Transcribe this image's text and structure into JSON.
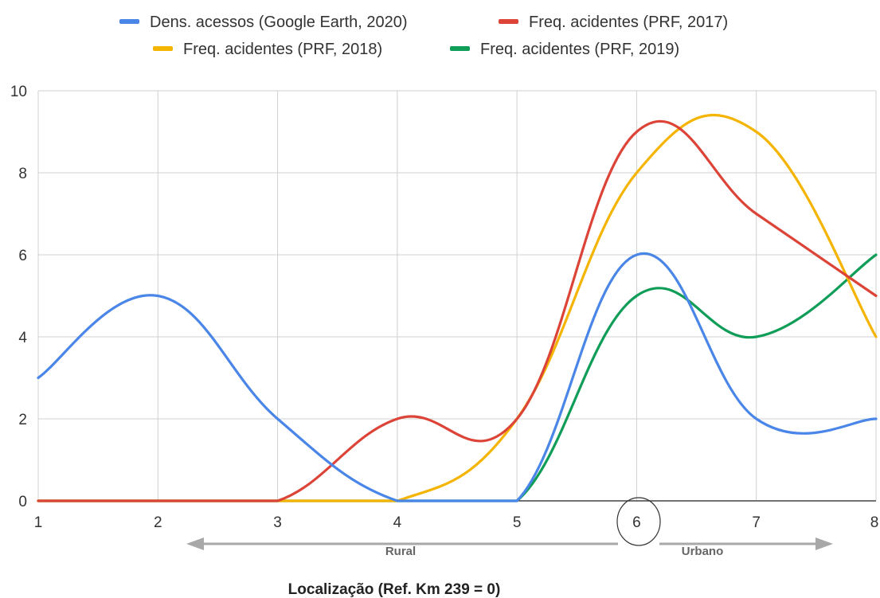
{
  "chart_data": {
    "type": "line",
    "xlabel": "Localização (Ref. Km 239 = 0)",
    "ylabel": "",
    "x": [
      1,
      2,
      3,
      4,
      5,
      6,
      7,
      8
    ],
    "xlim": [
      1,
      8
    ],
    "ylim": [
      0,
      10
    ],
    "x_ticks": [
      "1",
      "2",
      "3",
      "4",
      "5",
      "6",
      "7",
      "8"
    ],
    "y_ticks": [
      "0",
      "2",
      "4",
      "6",
      "8",
      "10"
    ],
    "grid": true,
    "legend_position": "top",
    "series": [
      {
        "name": "Dens. acessos (Google Earth, 2020)",
        "color": "#4a86e8",
        "values": [
          3,
          5,
          2,
          0,
          0,
          6,
          2,
          2
        ]
      },
      {
        "name": "Freq. acidentes (PRF, 2017)",
        "color": "#db4437",
        "values": [
          0,
          0,
          0,
          2,
          2,
          9,
          7,
          5
        ]
      },
      {
        "name": "Freq. acidentes (PRF, 2018)",
        "color": "#f4b400",
        "values": [
          0,
          0,
          0,
          0,
          2,
          8,
          9,
          4
        ]
      },
      {
        "name": "Freq. acidentes (PRF, 2019)",
        "color": "#0f9d58",
        "values": [
          0,
          0,
          0,
          0,
          0,
          5,
          4,
          6
        ]
      }
    ],
    "annotations": {
      "highlighted_tick": "6",
      "rural_label": "Rural",
      "urbano_label": "Urbano"
    }
  }
}
